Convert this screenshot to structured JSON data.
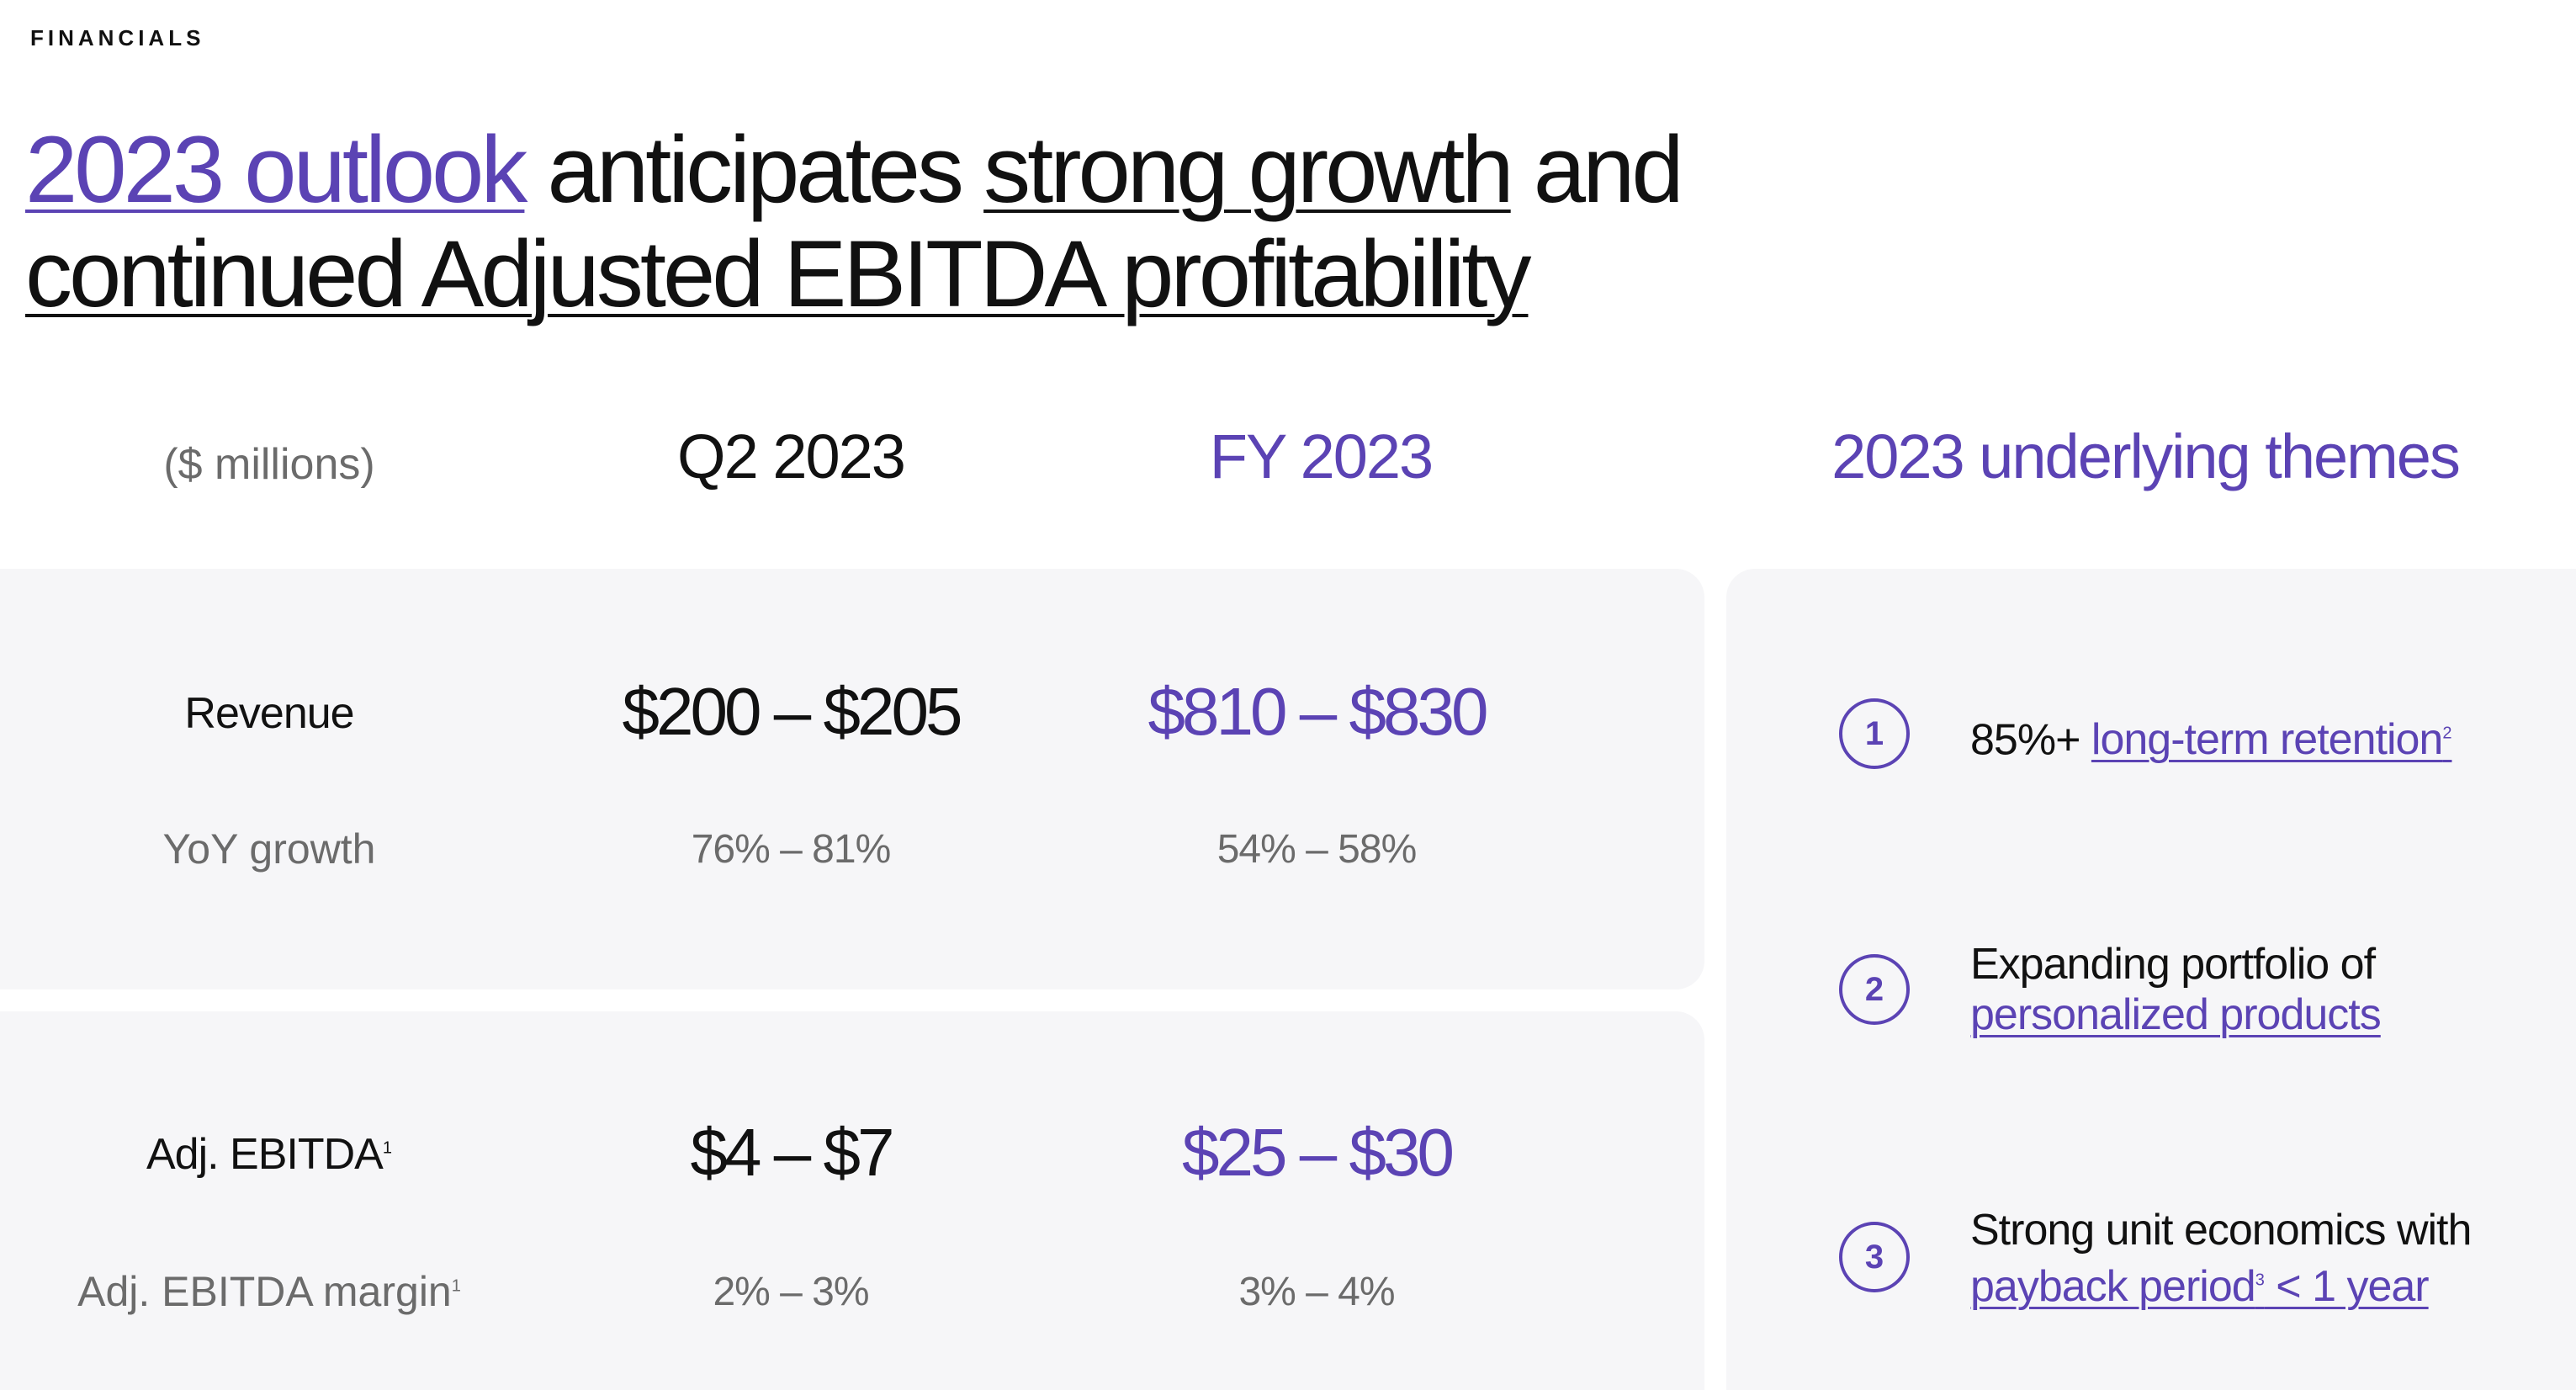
{
  "eyebrow": "FINANCIALS",
  "headline": {
    "part1": "2023 outlook",
    "part2": " anticipates ",
    "part3": "strong growth",
    "part4": " and",
    "part5": "continued Adjusted EBITDA profitability"
  },
  "columns": {
    "units": "($ millions)",
    "q2": "Q2 2023",
    "fy": "FY 2023",
    "themes": "2023 underlying themes"
  },
  "revenue": {
    "label": "Revenue",
    "q2": "$200 – $205",
    "fy": "$810 – $830",
    "growth_label": "YoY growth",
    "growth_q2": "76% – 81%",
    "growth_fy": "54% – 58%"
  },
  "ebitda": {
    "label": "Adj. EBITDA",
    "label_fn": "1",
    "q2": "$4 – $7",
    "fy": "$25 – $30",
    "margin_label": "Adj. EBITDA margin",
    "margin_fn": "1",
    "margin_q2": "2% – 3%",
    "margin_fy": "3% – 4%"
  },
  "themes": [
    {
      "number": "1",
      "prefix": "85%+ ",
      "link": "long-term retention",
      "fn": "2"
    },
    {
      "number": "2",
      "line1": "Expanding portfolio of",
      "link": "personalized products"
    },
    {
      "number": "3",
      "line1": "Strong unit economics with",
      "link": "payback period",
      "fn": "3",
      "suffix": " < 1 year"
    }
  ],
  "colors": {
    "accent": "#5b43b4",
    "panel": "#f6f6f8",
    "muted": "#6b6b6b"
  }
}
